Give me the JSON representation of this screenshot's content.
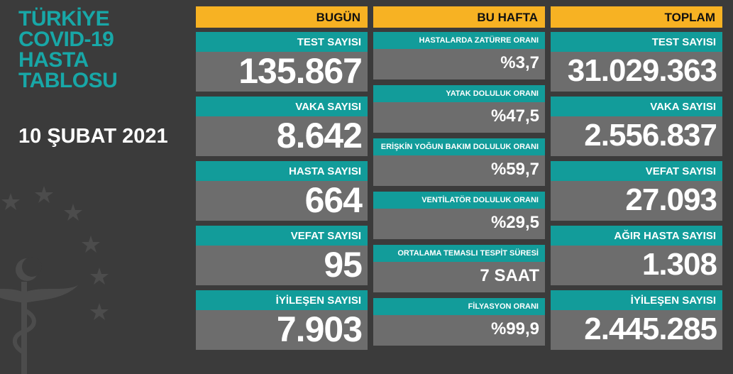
{
  "title_lines": [
    "TÜRKİYE",
    "COVID-19",
    "HASTA",
    "TABLOSU"
  ],
  "date": "10 ŞUBAT 2021",
  "colors": {
    "background": "#3b3b3b",
    "teal": "#129c9a",
    "header_yellow": "#f7b223",
    "card_gray": "#6d6d6d"
  },
  "columns": {
    "today": {
      "header": "BUGÜN",
      "cards": [
        {
          "label": "TEST SAYISI",
          "value": "135.867"
        },
        {
          "label": "VAKA SAYISI",
          "value": "8.642"
        },
        {
          "label": "HASTA SAYISI",
          "value": "664"
        },
        {
          "label": "VEFAT SAYISI",
          "value": "95"
        },
        {
          "label": "İYİLEŞEN SAYISI",
          "value": "7.903"
        }
      ]
    },
    "week": {
      "header": "BU HAFTA",
      "cards": [
        {
          "label": "HASTALARDA ZATÜRRE ORANI",
          "value": "%3,7"
        },
        {
          "label": "YATAK DOLULUK ORANI",
          "value": "%47,5"
        },
        {
          "label": "ERİŞKİN YOĞUN BAKIM DOLULUK ORANI",
          "value": "%59,7"
        },
        {
          "label": "VENTİLATÖR DOLULUK ORANI",
          "value": "%29,5"
        },
        {
          "label": "ORTALAMA TEMASLI TESPİT SÜRESİ",
          "value": "7 SAAT"
        },
        {
          "label": "FİLYASYON ORANI",
          "value": "%99,9"
        }
      ]
    },
    "total": {
      "header": "TOPLAM",
      "cards": [
        {
          "label": "TEST SAYISI",
          "value": "31.029.363"
        },
        {
          "label": "VAKA SAYISI",
          "value": "2.556.837"
        },
        {
          "label": "VEFAT SAYISI",
          "value": "27.093"
        },
        {
          "label": "AĞIR HASTA SAYISI",
          "value": "1.308"
        },
        {
          "label": "İYİLEŞEN SAYISI",
          "value": "2.445.285"
        }
      ]
    }
  }
}
